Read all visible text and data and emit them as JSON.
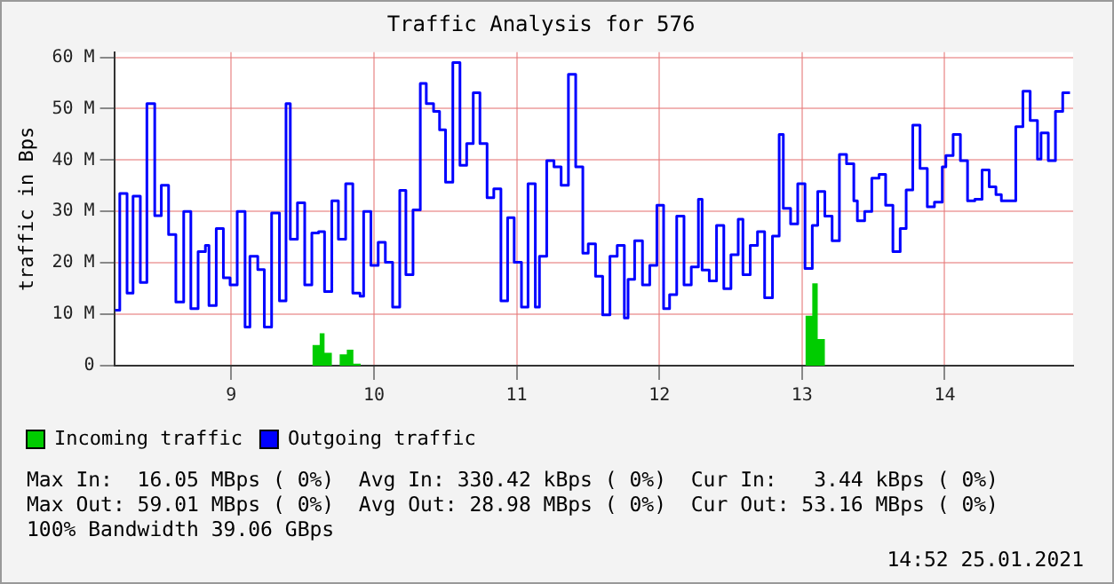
{
  "chart_data": {
    "type": "step",
    "title": "Traffic Analysis for 576",
    "ylabel": "traffic in Bps",
    "xlim": [
      8.18,
      14.9
    ],
    "xticks": [
      9,
      10,
      11,
      12,
      13,
      14
    ],
    "ylim": [
      0,
      61
    ],
    "yticks": [
      {
        "value": 0,
        "label": "0"
      },
      {
        "value": 10,
        "label": "10 M"
      },
      {
        "value": 20,
        "label": "20 M"
      },
      {
        "value": 30,
        "label": "30 M"
      },
      {
        "value": 40,
        "label": "40 M"
      },
      {
        "value": 50,
        "label": "50 M"
      },
      {
        "value": 60,
        "label": "60 M"
      }
    ],
    "grid": true,
    "legend": "bottom",
    "series": [
      {
        "name": "Incoming traffic",
        "color": "#00cc00",
        "type": "area",
        "x": [
          8.186,
          9.57,
          9.62,
          9.654,
          9.705,
          9.76,
          9.81,
          9.856,
          9.907,
          13.025,
          13.072,
          13.11,
          13.16,
          14.878
        ],
        "values": [
          0,
          4,
          6.3,
          2.5,
          0,
          2.2,
          3.1,
          0.4,
          0,
          9.7,
          16,
          5.2,
          0,
          0
        ]
      },
      {
        "name": "Outgoing traffic",
        "color": "#0000ff",
        "x": [
          8.186,
          8.219,
          8.27,
          8.312,
          8.363,
          8.409,
          8.464,
          8.51,
          8.561,
          8.612,
          8.667,
          8.717,
          8.768,
          8.819,
          8.844,
          8.895,
          8.945,
          8.992,
          9.042,
          9.097,
          9.131,
          9.186,
          9.232,
          9.283,
          9.338,
          9.384,
          9.414,
          9.464,
          9.515,
          9.565,
          9.612,
          9.654,
          9.705,
          9.751,
          9.802,
          9.852,
          9.903,
          9.928,
          9.979,
          10.03,
          10.08,
          10.131,
          10.181,
          10.224,
          10.274,
          10.325,
          10.367,
          10.418,
          10.46,
          10.502,
          10.553,
          10.603,
          10.65,
          10.696,
          10.743,
          10.793,
          10.84,
          10.89,
          10.937,
          10.983,
          11.034,
          11.08,
          11.131,
          11.16,
          11.211,
          11.262,
          11.312,
          11.363,
          11.414,
          11.464,
          11.502,
          11.553,
          11.603,
          11.654,
          11.705,
          11.755,
          11.781,
          11.827,
          11.882,
          11.933,
          11.983,
          12.03,
          12.072,
          12.122,
          12.173,
          12.224,
          12.274,
          12.3,
          12.35,
          12.401,
          12.452,
          12.502,
          12.553,
          12.586,
          12.637,
          12.688,
          12.738,
          12.793,
          12.84,
          12.869,
          12.92,
          12.97,
          13.021,
          13.072,
          13.11,
          13.16,
          13.211,
          13.262,
          13.312,
          13.363,
          13.388,
          13.439,
          13.489,
          13.54,
          13.586,
          13.637,
          13.688,
          13.73,
          13.776,
          13.827,
          13.878,
          13.928,
          13.983,
          14.008,
          14.059,
          14.11,
          14.16,
          14.211,
          14.262,
          14.312,
          14.359,
          14.397,
          14.498,
          14.548,
          14.599,
          14.65,
          14.675,
          14.726,
          14.776,
          14.827,
          14.878
        ],
        "values": [
          10.8,
          33.5,
          14.1,
          33,
          16.2,
          51,
          29.2,
          35.1,
          25.5,
          12.4,
          30,
          11.1,
          22.2,
          23.4,
          11.7,
          26.7,
          17.1,
          15.7,
          30,
          7.5,
          21.3,
          18.7,
          7.5,
          29.7,
          12.6,
          51,
          24.6,
          31.7,
          15.7,
          25.8,
          26.1,
          14.4,
          32.1,
          24.6,
          35.4,
          14.1,
          13.5,
          30,
          19.5,
          24,
          20.1,
          11.4,
          34.1,
          17.7,
          30.3,
          54.9,
          51,
          49.5,
          45.9,
          35.7,
          59,
          39,
          43.2,
          53.1,
          43.2,
          32.7,
          34.4,
          12.6,
          28.8,
          20.1,
          11.4,
          35.4,
          11.4,
          21.3,
          39.9,
          38.7,
          35.1,
          56.7,
          38.7,
          21.9,
          23.7,
          17.4,
          9.9,
          21.3,
          23.4,
          9.3,
          16.8,
          24.3,
          15.7,
          19.5,
          31.2,
          11.1,
          13.8,
          29.1,
          15.7,
          19.2,
          32.4,
          18.6,
          16.5,
          27.3,
          15,
          21.6,
          28.5,
          17.7,
          23.4,
          26.1,
          13.2,
          25.2,
          45,
          30.6,
          27.6,
          35.4,
          18.9,
          27.3,
          33.9,
          29.1,
          24.3,
          41.1,
          39.3,
          32.1,
          28.2,
          30,
          36.5,
          37.2,
          31.2,
          22.2,
          26.7,
          34.2,
          46.8,
          38.4,
          30.9,
          31.8,
          38.7,
          40.9,
          45,
          39.9,
          32.1,
          32.4,
          38.1,
          34.8,
          33.3,
          32.1,
          46.5,
          53.4,
          47.7,
          40.2,
          45.3,
          39.9,
          49.5,
          53.1,
          53.1
        ]
      }
    ],
    "annotations": [
      "Max In:  16.05 MBps ( 0%)  Avg In: 330.42 kBps ( 0%)  Cur In:   3.44 kBps ( 0%)",
      "Max Out: 59.01 MBps ( 0%)  Avg Out: 28.98 MBps ( 0%)  Cur Out: 53.16 MBps ( 0%)",
      "100% Bandwidth 39.06 GBps",
      "14:52 25.01.2021"
    ]
  }
}
